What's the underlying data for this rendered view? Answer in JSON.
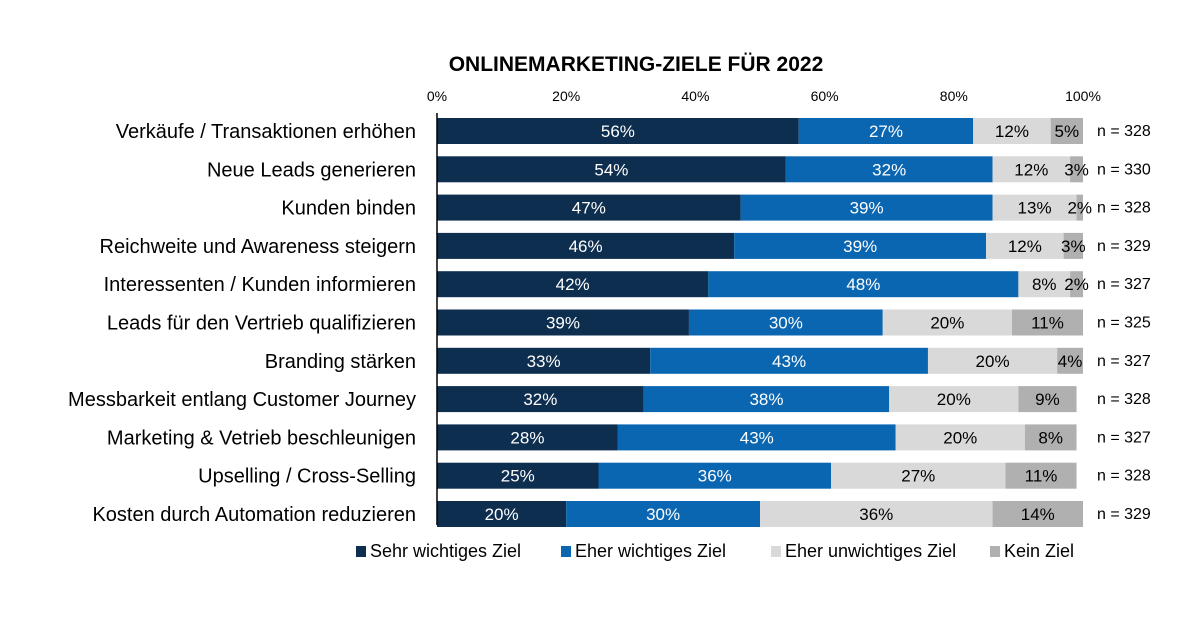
{
  "chart_data": {
    "type": "bar",
    "orientation": "horizontal",
    "stacked": true,
    "title": "ONLINEMARKETING-ZIELE FÜR 2022",
    "xlim": [
      0,
      100
    ],
    "x_ticks": [
      "0%",
      "20%",
      "40%",
      "60%",
      "80%",
      "100%"
    ],
    "categories": [
      "Verkäufe / Transaktionen erhöhen",
      "Neue Leads generieren",
      "Kunden binden",
      "Reichweite und Awareness steigern",
      "Interessenten / Kunden informieren",
      "Leads für den Vertrieb qualifizieren",
      "Branding stärken",
      "Messbarkeit entlang Customer Journey",
      "Marketing & Vetrieb beschleunigen",
      "Upselling / Cross-Selling",
      "Kosten durch Automation reduzieren"
    ],
    "n_labels": [
      "n = 328",
      "n = 330",
      "n = 328",
      "n = 329",
      "n = 327",
      "n = 325",
      "n = 327",
      "n = 328",
      "n = 327",
      "n = 328",
      "n = 329"
    ],
    "series": [
      {
        "name": "Sehr wichtiges Ziel",
        "color": "#0d2e4f",
        "text_color": "#ffffff",
        "values": [
          56,
          54,
          47,
          46,
          42,
          39,
          33,
          32,
          28,
          25,
          20
        ],
        "labels": [
          "56%",
          "54%",
          "47%",
          "46%",
          "42%",
          "39%",
          "33%",
          "32%",
          "28%",
          "25%",
          "20%"
        ]
      },
      {
        "name": "Eher wichtiges Ziel",
        "color": "#0a66b0",
        "text_color": "#ffffff",
        "values": [
          27,
          32,
          39,
          39,
          48,
          30,
          43,
          38,
          43,
          36,
          30
        ],
        "labels": [
          "27%",
          "32%",
          "39%",
          "39%",
          "48%",
          "30%",
          "43%",
          "38%",
          "43%",
          "36%",
          "30%"
        ]
      },
      {
        "name": "Eher unwichtiges Ziel",
        "color": "#d9d9d9",
        "text_color": "#000000",
        "values": [
          12,
          12,
          13,
          12,
          8,
          20,
          20,
          20,
          20,
          27,
          36
        ],
        "labels": [
          "12%",
          "12%",
          "13%",
          "12%",
          "8%",
          "20%",
          "20%",
          "20%",
          "20%",
          "27%",
          "36%"
        ]
      },
      {
        "name": "Kein Ziel",
        "color": "#b0b0b0",
        "text_color": "#000000",
        "values": [
          5,
          3,
          2,
          3,
          2,
          11,
          4,
          9,
          8,
          11,
          14
        ],
        "labels": [
          "5%",
          "3%",
          "2%",
          "3%",
          "2%",
          "11%",
          "4%",
          "9%",
          "8%",
          "11%",
          "14%"
        ]
      }
    ],
    "legend_position": "bottom"
  }
}
